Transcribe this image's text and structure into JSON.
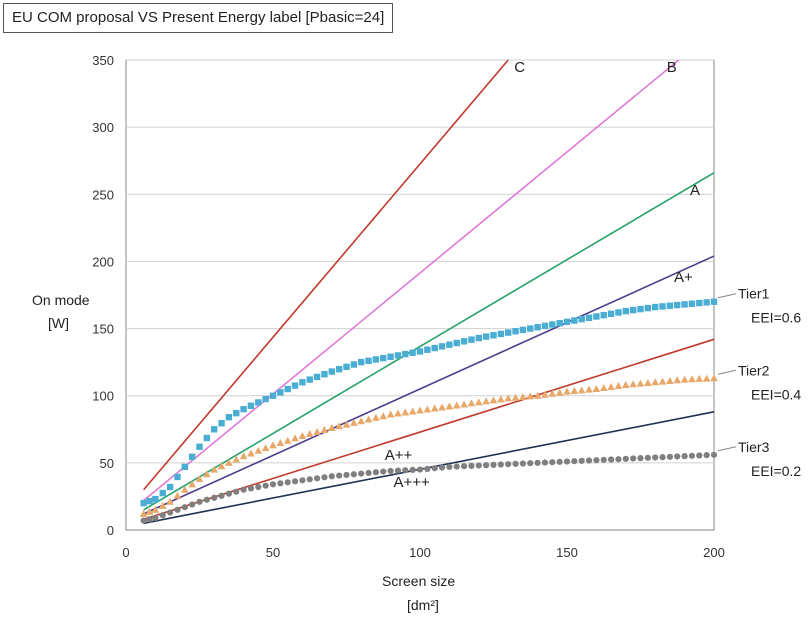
{
  "chart_data": {
    "type": "line",
    "title": "EU COM proposal  VS Present Energy label [Pbasic=24]",
    "xlabel": "Screen size",
    "xlabel_unit": "[dm²]",
    "ylabel": "On mode",
    "ylabel_unit": "[W]",
    "xlim": [
      0,
      200
    ],
    "ylim": [
      0,
      350
    ],
    "x_ticks": [
      "0",
      "50",
      "100",
      "150",
      "200"
    ],
    "y_ticks": [
      "0",
      "50",
      "100",
      "150",
      "200",
      "250",
      "300",
      "350"
    ],
    "grid": "horizontal",
    "line_series": [
      {
        "name": "C",
        "color": "#c0392b",
        "points": [
          [
            6,
            30
          ],
          [
            130,
            350
          ]
        ]
      },
      {
        "name": "B",
        "color": "#e07ad8",
        "points": [
          [
            6,
            22
          ],
          [
            188,
            350
          ]
        ]
      },
      {
        "name": "A",
        "color": "#27a36a",
        "points": [
          [
            6,
            15
          ],
          [
            200,
            266
          ]
        ]
      },
      {
        "name": "A+",
        "color": "#4b3c8c",
        "points": [
          [
            6,
            12
          ],
          [
            200,
            204
          ]
        ]
      },
      {
        "name": "A++",
        "color": "#c0392b",
        "points": [
          [
            6,
            8
          ],
          [
            200,
            142
          ]
        ]
      },
      {
        "name": "A+++",
        "color": "#1f3350",
        "points": [
          [
            6,
            5
          ],
          [
            200,
            88
          ]
        ]
      }
    ],
    "tier_series": [
      {
        "name": "Tier1",
        "eei": "EEI=0.6",
        "marker": "square",
        "color": "#4aaed4",
        "points": [
          [
            6,
            20
          ],
          [
            10,
            23
          ],
          [
            15,
            32
          ],
          [
            20,
            47
          ],
          [
            25,
            62
          ],
          [
            30,
            75
          ],
          [
            35,
            84
          ],
          [
            40,
            90
          ],
          [
            45,
            95
          ],
          [
            50,
            100
          ],
          [
            60,
            110
          ],
          [
            70,
            118
          ],
          [
            80,
            125
          ],
          [
            90,
            129
          ],
          [
            100,
            133
          ],
          [
            110,
            138
          ],
          [
            120,
            143
          ],
          [
            130,
            147
          ],
          [
            140,
            151
          ],
          [
            150,
            155
          ],
          [
            160,
            159
          ],
          [
            170,
            163
          ],
          [
            180,
            166
          ],
          [
            190,
            168
          ],
          [
            200,
            170
          ]
        ]
      },
      {
        "name": "Tier2",
        "eei": "EEI=0.4",
        "marker": "triangle",
        "color": "#e8a86a",
        "points": [
          [
            6,
            12
          ],
          [
            10,
            15
          ],
          [
            15,
            21
          ],
          [
            20,
            30
          ],
          [
            25,
            38
          ],
          [
            30,
            45
          ],
          [
            35,
            50
          ],
          [
            40,
            55
          ],
          [
            45,
            59
          ],
          [
            50,
            63
          ],
          [
            60,
            70
          ],
          [
            70,
            76
          ],
          [
            80,
            81
          ],
          [
            90,
            86
          ],
          [
            100,
            89
          ],
          [
            110,
            92
          ],
          [
            120,
            95
          ],
          [
            130,
            98
          ],
          [
            140,
            100
          ],
          [
            150,
            103
          ],
          [
            160,
            105
          ],
          [
            170,
            108
          ],
          [
            180,
            110
          ],
          [
            190,
            112
          ],
          [
            200,
            113
          ]
        ]
      },
      {
        "name": "Tier3",
        "eei": "EEI=0.2",
        "marker": "circle",
        "color": "#7f7f7f",
        "points": [
          [
            6,
            7
          ],
          [
            10,
            9
          ],
          [
            15,
            13
          ],
          [
            20,
            17
          ],
          [
            25,
            21
          ],
          [
            30,
            24
          ],
          [
            35,
            27
          ],
          [
            40,
            30
          ],
          [
            45,
            32
          ],
          [
            50,
            34
          ],
          [
            60,
            37
          ],
          [
            70,
            40
          ],
          [
            80,
            42
          ],
          [
            90,
            44
          ],
          [
            100,
            45
          ],
          [
            110,
            47
          ],
          [
            120,
            48
          ],
          [
            130,
            49
          ],
          [
            140,
            50
          ],
          [
            150,
            51
          ],
          [
            160,
            52
          ],
          [
            170,
            53
          ],
          [
            180,
            54
          ],
          [
            190,
            55
          ],
          [
            200,
            56
          ]
        ]
      }
    ]
  }
}
